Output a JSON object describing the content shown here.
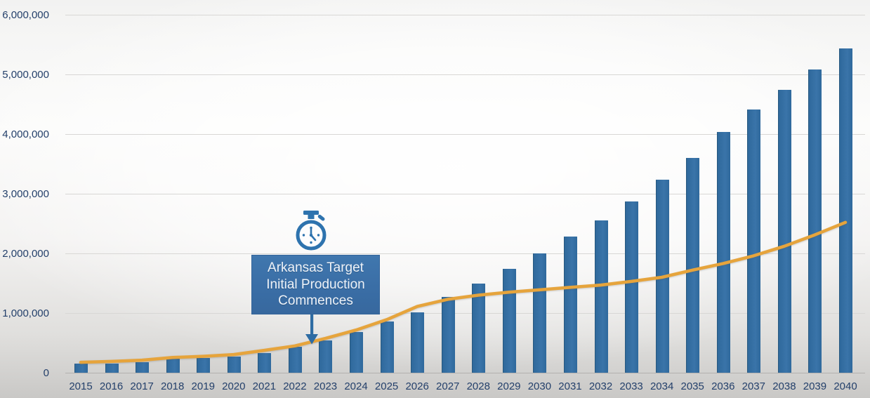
{
  "chart_data": {
    "type": "bar",
    "title": "",
    "xlabel": "",
    "ylabel": "",
    "categories": [
      "2015",
      "2016",
      "2017",
      "2018",
      "2019",
      "2020",
      "2021",
      "2022",
      "2023",
      "2024",
      "2025",
      "2026",
      "2027",
      "2028",
      "2029",
      "2030",
      "2031",
      "2032",
      "2033",
      "2034",
      "2035",
      "2036",
      "2037",
      "2038",
      "2039",
      "2040"
    ],
    "series": [
      {
        "name": "bars",
        "type": "bar",
        "color": "#2f699c",
        "values": [
          150000,
          155000,
          180000,
          230000,
          245000,
          275000,
          325000,
          430000,
          540000,
          680000,
          860000,
          1010000,
          1275000,
          1490000,
          1740000,
          2000000,
          2280000,
          2550000,
          2870000,
          3230000,
          3600000,
          4030000,
          4410000,
          4740000,
          5080000,
          5430000
        ]
      },
      {
        "name": "line",
        "type": "line",
        "color": "#e6a43c",
        "values": [
          175000,
          190000,
          210000,
          255000,
          275000,
          305000,
          375000,
          450000,
          575000,
          715000,
          890000,
          1110000,
          1230000,
          1300000,
          1350000,
          1390000,
          1430000,
          1470000,
          1530000,
          1600000,
          1720000,
          1830000,
          1960000,
          2120000,
          2310000,
          2520000
        ]
      }
    ],
    "ylim": [
      0,
      6000000
    ],
    "ytick_labels": [
      "0",
      "1,000,000",
      "2,000,000",
      "3,000,000",
      "4,000,000",
      "5,000,000",
      "6,000,000"
    ],
    "grid": true,
    "legend_position": "none"
  },
  "annotation": {
    "line1": "Arkansas Target",
    "line2": "Initial Production",
    "line3": "Commences",
    "icon": "stopwatch-icon",
    "box_color": "#3a6ea6",
    "text_color": "#eef3f9",
    "arrow_color": "#2e6ca3"
  },
  "colors": {
    "bar": "#2f699c",
    "line": "#e6a43c",
    "axis_text": "#24406b",
    "gridline": "#d8d7d5",
    "zero_axis": "#b3b1af"
  }
}
